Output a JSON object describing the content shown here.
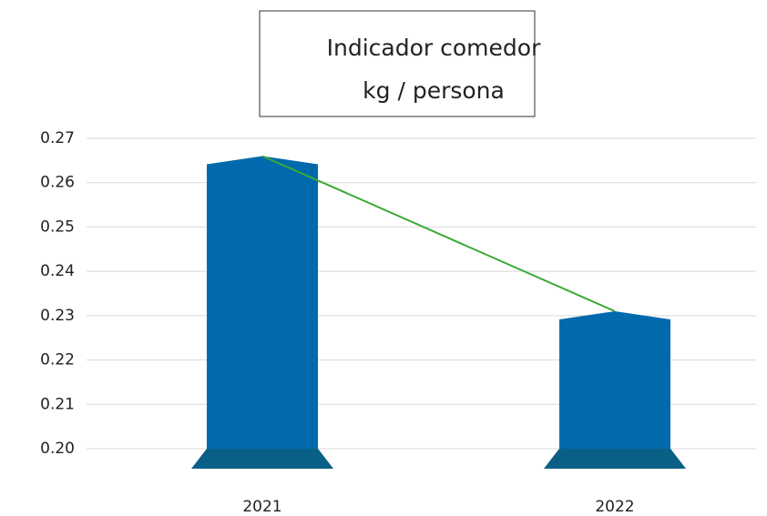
{
  "chart_data": {
    "type": "bar",
    "title": "Indicador comedor",
    "subtitle": "kg / persona",
    "categories": [
      "2021",
      "2022"
    ],
    "values": [
      0.266,
      0.231
    ],
    "color": "#006aad",
    "base_color": "#0a5f86",
    "line_color": "#3aaa35",
    "ylim": [
      0.2,
      0.27
    ],
    "yticks": [
      {
        "value": 0.2,
        "label": "0.20"
      },
      0.21,
      0.22,
      0.23,
      0.24,
      0.25,
      0.26,
      0.27
    ],
    "grid": true
  }
}
